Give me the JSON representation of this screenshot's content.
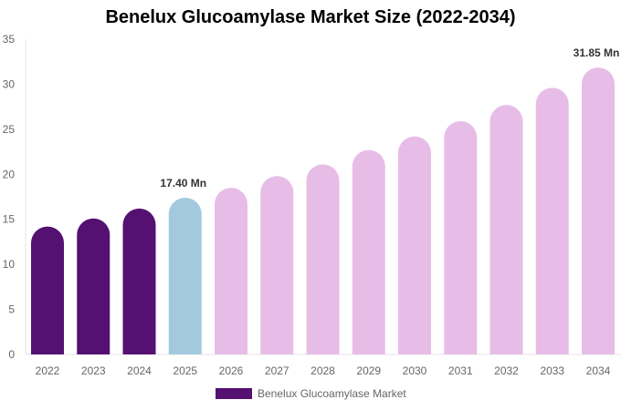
{
  "chart_data": {
    "type": "bar",
    "title": "Benelux Glucoamylase Market Size (2022-2034)",
    "categories": [
      "2022",
      "2023",
      "2024",
      "2025",
      "2026",
      "2027",
      "2028",
      "2029",
      "2030",
      "2031",
      "2032",
      "2033",
      "2034"
    ],
    "series": [
      {
        "name": "Benelux Glucoamylase Market",
        "values": [
          14.2,
          15.1,
          16.2,
          17.4,
          18.5,
          19.8,
          21.1,
          22.7,
          24.2,
          25.9,
          27.7,
          29.6,
          31.85
        ]
      }
    ],
    "bar_colors": [
      "#541172",
      "#541172",
      "#541172",
      "#a3c9df",
      "#e7bde8",
      "#e7bde8",
      "#e7bde8",
      "#e7bde8",
      "#e7bde8",
      "#e7bde8",
      "#e7bde8",
      "#e7bde8",
      "#e7bde8"
    ],
    "data_labels": [
      {
        "category": "2025",
        "text": "17.40 Mn"
      },
      {
        "category": "2034",
        "text": "31.85 Mn"
      }
    ],
    "yticks": [
      0,
      5,
      10,
      15,
      20,
      25,
      30,
      35
    ],
    "ylim": [
      0,
      35
    ],
    "xlabel": "",
    "ylabel": "",
    "grid": false,
    "legend": {
      "position": "bottom",
      "label": "Benelux Glucoamylase Market",
      "color": "#541172"
    }
  }
}
